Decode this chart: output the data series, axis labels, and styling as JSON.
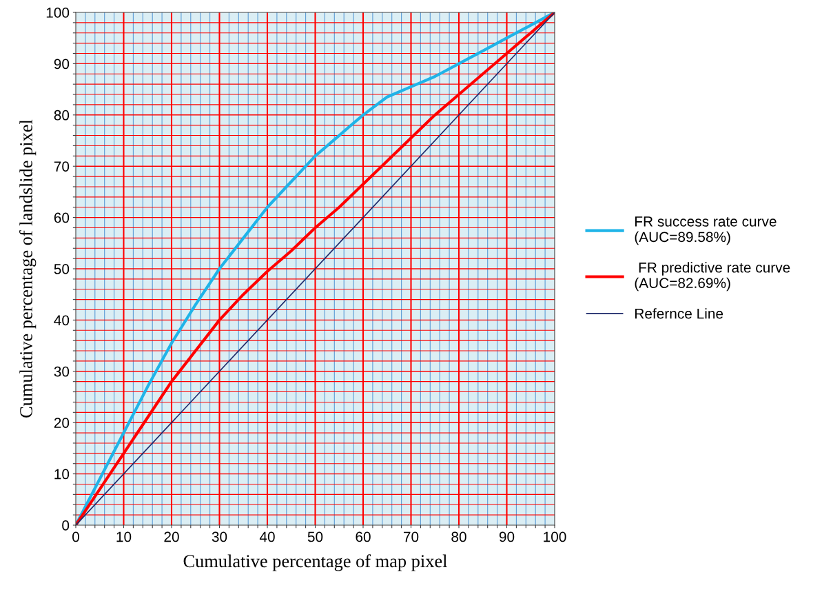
{
  "chart_data": {
    "type": "line",
    "xlabel": "Cumulative percentage of map pixel",
    "ylabel": "Cumulative percentage of landslide pixel",
    "xlim": [
      0,
      100
    ],
    "ylim": [
      0,
      100
    ],
    "xticks": [
      0,
      {
        "value": 2,
        "label": null
      },
      {
        "value": 4,
        "label": null
      },
      {
        "value": 6,
        "label": null
      },
      {
        "value": 8,
        "label": null
      },
      10,
      {
        "value": 12,
        "label": null
      },
      {
        "value": 14,
        "label": null
      },
      {
        "value": 16,
        "label": null
      },
      {
        "value": 18,
        "label": null
      },
      20,
      {
        "value": 22,
        "label": null
      },
      {
        "value": 24,
        "label": null
      },
      {
        "value": 26,
        "label": null
      },
      {
        "value": 28,
        "label": null
      },
      30,
      {
        "value": 32,
        "label": null
      },
      {
        "value": 34,
        "label": null
      },
      {
        "value": 36,
        "label": null
      },
      {
        "value": 38,
        "label": null
      },
      40,
      {
        "value": 42,
        "label": null
      },
      {
        "value": 44,
        "label": null
      },
      {
        "value": 46,
        "label": null
      },
      {
        "value": 48,
        "label": null
      },
      50,
      {
        "value": 52,
        "label": null
      },
      {
        "value": 54,
        "label": null
      },
      {
        "value": 56,
        "label": null
      },
      {
        "value": 58,
        "label": null
      },
      60,
      {
        "value": 62,
        "label": null
      },
      {
        "value": 64,
        "label": null
      },
      {
        "value": 66,
        "label": null
      },
      {
        "value": 68,
        "label": null
      },
      70,
      {
        "value": 72,
        "label": null
      },
      {
        "value": 74,
        "label": null
      },
      {
        "value": 76,
        "label": null
      },
      {
        "value": 78,
        "label": null
      },
      80,
      {
        "value": 82,
        "label": null
      },
      {
        "value": 84,
        "label": null
      },
      {
        "value": 86,
        "label": null
      },
      {
        "value": 88,
        "label": null
      },
      90,
      {
        "value": 92,
        "label": null
      },
      {
        "value": 94,
        "label": null
      },
      {
        "value": 96,
        "label": null
      },
      {
        "value": 98,
        "label": null
      },
      100
    ],
    "yticks": [
      0,
      {
        "value": 2,
        "label": null
      },
      {
        "value": 4,
        "label": null
      },
      {
        "value": 6,
        "label": null
      },
      {
        "value": 8,
        "label": null
      },
      10,
      {
        "value": 12,
        "label": null
      },
      {
        "value": 14,
        "label": null
      },
      {
        "value": 16,
        "label": null
      },
      {
        "value": 18,
        "label": null
      },
      20,
      {
        "value": 22,
        "label": null
      },
      {
        "value": 24,
        "label": null
      },
      {
        "value": 26,
        "label": null
      },
      {
        "value": 28,
        "label": null
      },
      30,
      {
        "value": 32,
        "label": null
      },
      {
        "value": 34,
        "label": null
      },
      {
        "value": 36,
        "label": null
      },
      {
        "value": 38,
        "label": null
      },
      40,
      {
        "value": 42,
        "label": null
      },
      {
        "value": 44,
        "label": null
      },
      {
        "value": 46,
        "label": null
      },
      {
        "value": 48,
        "label": null
      },
      50,
      {
        "value": 52,
        "label": null
      },
      {
        "value": 54,
        "label": null
      },
      {
        "value": 56,
        "label": null
      },
      {
        "value": 58,
        "label": null
      },
      60,
      {
        "value": 62,
        "label": null
      },
      {
        "value": 64,
        "label": null
      },
      {
        "value": 66,
        "label": null
      },
      {
        "value": 68,
        "label": null
      },
      70,
      {
        "value": 72,
        "label": null
      },
      {
        "value": 74,
        "label": null
      },
      {
        "value": 76,
        "label": null
      },
      {
        "value": 78,
        "label": null
      },
      80,
      {
        "value": 82,
        "label": null
      },
      {
        "value": 84,
        "label": null
      },
      {
        "value": 86,
        "label": null
      },
      {
        "value": 88,
        "label": null
      },
      90,
      {
        "value": 92,
        "label": null
      },
      {
        "value": 94,
        "label": null
      },
      {
        "value": 96,
        "label": null
      },
      {
        "value": 98,
        "label": null
      },
      100
    ],
    "grid": true,
    "legend": "right",
    "marker": "none",
    "line_style": "solid",
    "series": [
      {
        "name": "FR success rate curve\n(AUC=89.58%)",
        "color": "#1fb4e8",
        "x": [
          0,
          5,
          10,
          15,
          20,
          25,
          30,
          35,
          40,
          45,
          50,
          55,
          60,
          65,
          70,
          75,
          80,
          85,
          90,
          95,
          100
        ],
        "values": [
          0,
          9,
          18,
          27,
          35.5,
          43,
          50,
          56,
          62,
          67,
          72,
          76,
          80,
          83.5,
          85.5,
          87.5,
          90,
          92.5,
          95,
          97.5,
          100
        ]
      },
      {
        "name": " FR predictive rate curve\n(AUC=82.69%)",
        "color": "#ff0000",
        "x": [
          0,
          5,
          10,
          15,
          20,
          25,
          30,
          35,
          40,
          45,
          50,
          55,
          60,
          65,
          70,
          75,
          80,
          85,
          90,
          95,
          100
        ],
        "values": [
          0,
          7,
          14,
          21,
          28,
          34,
          40,
          45,
          49.5,
          53.5,
          58,
          62,
          66.5,
          71,
          75.5,
          80,
          84,
          88,
          92,
          96,
          100
        ]
      },
      {
        "name": "Refernce Line",
        "color": "#1f2a6b",
        "x": [
          0,
          100
        ],
        "values": [
          0,
          100
        ]
      }
    ]
  }
}
